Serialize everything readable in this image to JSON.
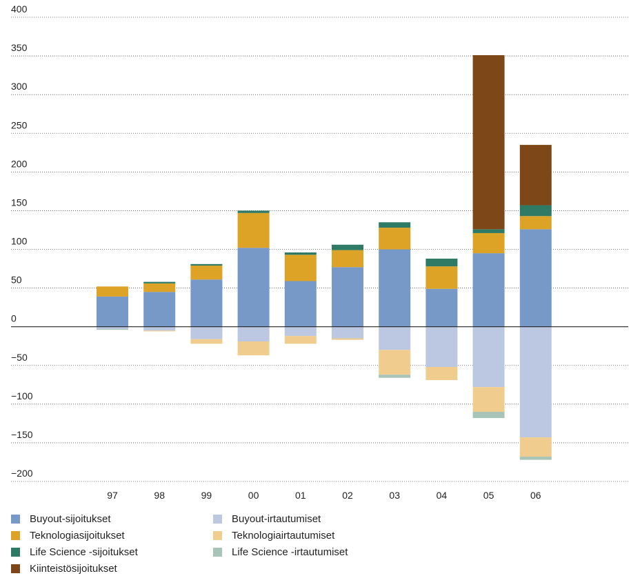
{
  "chart_data": {
    "type": "bar",
    "stacked": true,
    "categories": [
      "97",
      "98",
      "99",
      "00",
      "01",
      "02",
      "03",
      "04",
      "05",
      "06"
    ],
    "y_ticks": [
      400,
      350,
      300,
      250,
      200,
      150,
      100,
      50,
      0,
      -50,
      -100,
      -150,
      -200
    ],
    "y_tick_labels": [
      "400",
      "350",
      "300",
      "250",
      "200",
      "150",
      "100",
      "50",
      "0",
      "−50",
      "−100",
      "−150",
      "−200"
    ],
    "ylim": [
      -200,
      400
    ],
    "grid": "horizontal dotted",
    "legend_position": "bottom",
    "series": [
      {
        "name": "Buyout-sijoitukset",
        "color": "#7699c8",
        "values": [
          39,
          45,
          61,
          102,
          59,
          77,
          100,
          49,
          95,
          126
        ]
      },
      {
        "name": "Teknologiasijoitukset",
        "color": "#dca327",
        "values": [
          13,
          11,
          18,
          45,
          34,
          22,
          28,
          29,
          26,
          17
        ]
      },
      {
        "name": "Life Science -sijoitukset",
        "color": "#2e7a64",
        "values": [
          0,
          2,
          2,
          3,
          3,
          7,
          7,
          10,
          5,
          14
        ]
      },
      {
        "name": "Kiinteistösijoitukset",
        "color": "#7d4717",
        "values": [
          0,
          0,
          0,
          0,
          0,
          0,
          0,
          0,
          225,
          78
        ]
      },
      {
        "name": "Buyout-irtautumiset",
        "color": "#bcc8e1",
        "values": [
          -3,
          -5,
          -16,
          -19,
          -12,
          -15,
          -30,
          -52,
          -78,
          -143
        ]
      },
      {
        "name": "Teknologiairtautumiset",
        "color": "#f0cd8e",
        "values": [
          0,
          -1,
          -6,
          -18,
          -10,
          -2,
          -32,
          -17,
          -32,
          -25
        ]
      },
      {
        "name": "Life Science -irtautumiset",
        "color": "#a8c3b7",
        "values": [
          -1,
          0,
          0,
          0,
          0,
          0,
          -4,
          0,
          -8,
          -4
        ]
      }
    ]
  }
}
